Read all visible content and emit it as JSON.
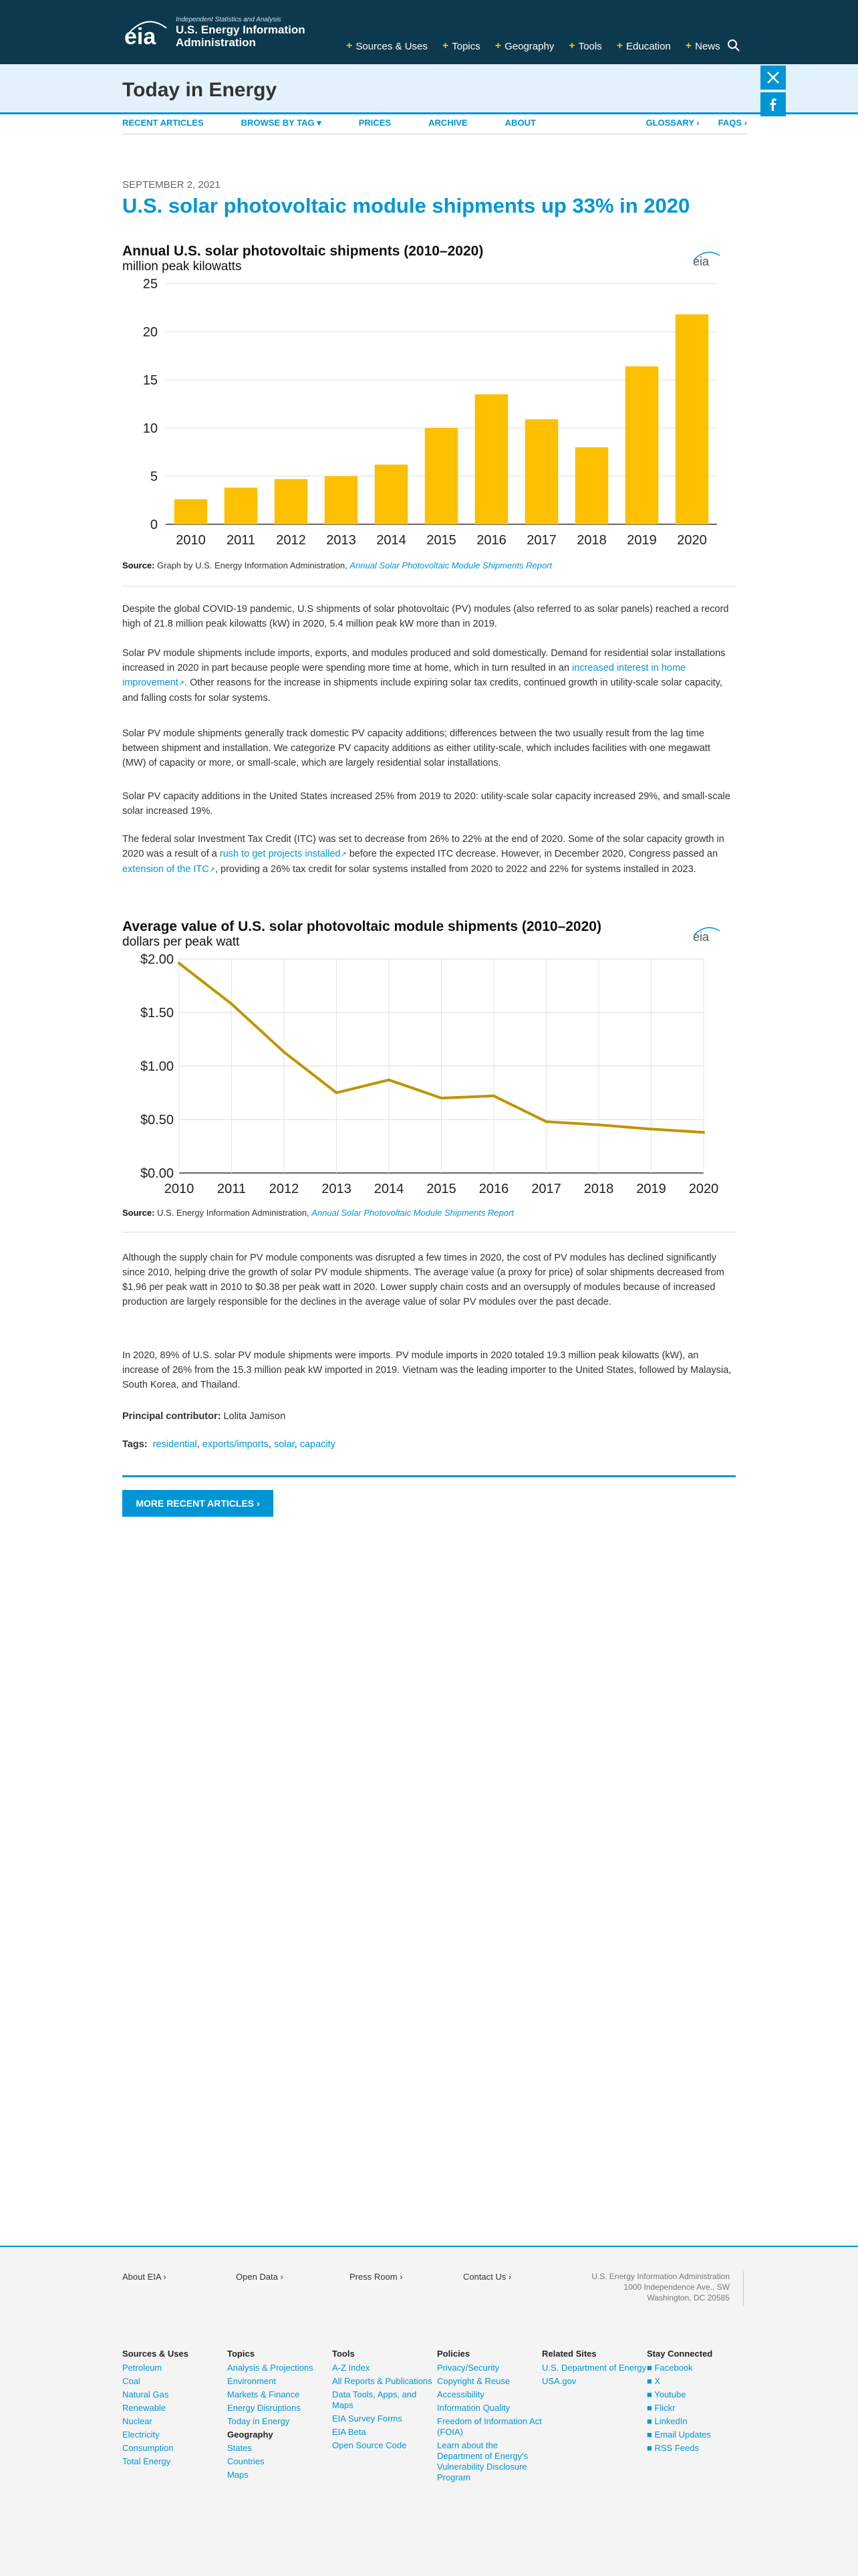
{
  "header": {
    "logo_small": "Independent Statistics and Analysis",
    "logo_line1": "U.S. Energy Information",
    "logo_line2": "Administration",
    "logo_mark": "eia",
    "nav": [
      "Sources & Uses",
      "Topics",
      "Geography",
      "Tools",
      "Education",
      "News"
    ]
  },
  "section_title": "Today in Energy",
  "subnav": {
    "left": [
      "RECENT ARTICLES",
      "BROWSE BY TAG ▾",
      "PRICES",
      "ARCHIVE",
      "ABOUT"
    ],
    "right": [
      "GLOSSARY ›",
      "FAQS ›"
    ]
  },
  "article": {
    "date": "SEPTEMBER 2, 2021",
    "headline": "U.S. solar photovoltaic module shipments up 33% in 2020",
    "source1_label": "Source:",
    "source1_text": " Graph by U.S. Energy Information Administration, ",
    "source1_link": "Annual Solar Photovoltaic Module Shipments Report",
    "p1": "Despite the global COVID-19 pandemic, U.S shipments of solar photovoltaic (PV) modules (also referred to as solar panels) reached a record high of 21.8 million peak kilowatts (kW) in 2020, 5.4 million peak kW more than in 2019.",
    "p2_a": "Solar PV module shipments include imports, exports, and modules produced and sold domestically. Demand for residential solar installations increased in 2020 in part because people were spending more time at home, which in turn resulted in an ",
    "p2_link": "increased interest in home improvement",
    "p2_b": ". Other reasons for the increase in shipments include expiring solar tax credits, continued growth in utility-scale solar capacity, and falling costs for solar systems.",
    "p3": "Solar PV module shipments generally track domestic PV capacity additions; differences between the two usually result from the lag time between shipment and installation. We categorize PV capacity additions as either utility-scale, which includes facilities with one megawatt (MW) of capacity or more, or small-scale, which are largely residential solar installations.",
    "p4": "Solar PV capacity additions in the United States increased 25% from 2019 to 2020: utility-scale solar capacity increased 29%, and small-scale solar increased 19%.",
    "p5_a": "The federal solar Investment Tax Credit (ITC) was set to decrease from 26% to 22% at the end of 2020. Some of the solar capacity growth in 2020 was a result of a ",
    "p5_link1": "rush to get projects installed",
    "p5_b": " before the expected ITC decrease. However, in December 2020, Congress passed an ",
    "p5_link2": "extension of the ITC",
    "p5_c": ", providing a 26% tax credit for solar systems installed from 2020 to 2022 and 22% for systems installed in 2023.",
    "source2_label": "Source:",
    "source2_text": " U.S. Energy Information Administration, ",
    "source2_link": "Annual Solar Photovoltaic Module Shipments Report",
    "p6": "Although the supply chain for PV module components was disrupted a few times in 2020, the cost of PV modules has declined significantly since 2010, helping drive the growth of solar PV module shipments. The average value (a proxy for price) of solar shipments decreased from $1.96 per peak watt in 2010 to $0.38 per peak watt in 2020. Lower supply chain costs and an oversupply of modules because of increased production are largely responsible for the declines in the average value of solar PV modules over the past decade.",
    "p7": "In 2020, 89% of U.S. solar PV module shipments were imports. PV module imports in 2020 totaled 19.3 million peak kilowatts (kW), an increase of 26% from the 15.3 million peak kW imported in 2019. Vietnam was the leading importer to the United States, followed by Malaysia, South Korea, and Thailand.",
    "contrib_label": "Principal contributor:",
    "contrib_name": " Lolita Jamison",
    "tags_label": "Tags:",
    "tags": [
      "residential",
      "exports/imports",
      "solar",
      "capacity"
    ],
    "more_button": "MORE RECENT ARTICLES ›"
  },
  "chart_data": [
    {
      "type": "bar",
      "title": "Annual U.S. solar photovoltaic shipments (2010–2020)",
      "subtitle": "million peak kilowatts",
      "categories": [
        "2010",
        "2011",
        "2012",
        "2013",
        "2014",
        "2015",
        "2016",
        "2017",
        "2018",
        "2019",
        "2020"
      ],
      "values": [
        2.6,
        3.8,
        4.7,
        5.0,
        6.2,
        10.0,
        13.5,
        10.9,
        8.0,
        16.4,
        21.8
      ],
      "ylim": [
        0,
        25
      ],
      "yticks": [
        "0",
        "5",
        "10",
        "15",
        "20",
        "25"
      ],
      "color": "#fcc000",
      "logo": "eia"
    },
    {
      "type": "line",
      "title": "Average value of U.S. solar photovoltaic module shipments (2010–2020)",
      "subtitle": "dollars per peak watt",
      "categories": [
        "2010",
        "2011",
        "2012",
        "2013",
        "2014",
        "2015",
        "2016",
        "2017",
        "2018",
        "2019",
        "2020"
      ],
      "values": [
        1.96,
        1.58,
        1.13,
        0.75,
        0.87,
        0.7,
        0.72,
        0.48,
        0.45,
        0.41,
        0.38
      ],
      "ylim": [
        0,
        2
      ],
      "yticks": [
        "$0.00",
        "$0.50",
        "$1.00",
        "$1.50",
        "$2.00"
      ],
      "color": "#c09400",
      "logo": "eia"
    }
  ],
  "footer": {
    "links": [
      "About EIA ›",
      "Open Data ›",
      "Press Room ›",
      "Contact Us ›"
    ],
    "address": [
      "U.S. Energy Information Administration",
      "1000 Independence Ave., SW",
      "Washington, DC 20585"
    ],
    "cols": [
      {
        "title": "Sources & Uses",
        "items": [
          "Petroleum",
          "Coal",
          "Natural Gas",
          "Renewable",
          "Nuclear",
          "Electricity",
          "Consumption",
          "Total Energy"
        ]
      },
      {
        "title": "Topics",
        "items": [
          "Analysis & Projections",
          "Environment",
          "Markets & Finance",
          "Energy Disruptions",
          "Today in Energy"
        ],
        "sub": "Geography",
        "sub_items": [
          "States",
          "Countries",
          "Maps"
        ]
      },
      {
        "title": "Tools",
        "items": [
          "A-Z Index",
          "All Reports & Publications",
          "Data Tools, Apps, and Maps",
          "EIA Survey Forms",
          "EIA Beta",
          "Open Source Code"
        ]
      },
      {
        "title": "Policies",
        "items": [
          "Privacy/Security",
          "Copyright & Reuse",
          "Accessibility",
          "Information Quality",
          "Freedom of Information Act (FOIA)",
          "Learn about the Department of Energy's Vulnerability Disclosure Program"
        ]
      },
      {
        "title": "Related Sites",
        "items": [
          "U.S. Department of Energy",
          "USA.gov"
        ]
      },
      {
        "title": "Stay Connected",
        "items": [
          "Facebook",
          "X",
          "Youtube",
          "Flickr",
          "LinkedIn",
          "Email Updates",
          "RSS Feeds"
        ]
      }
    ]
  }
}
